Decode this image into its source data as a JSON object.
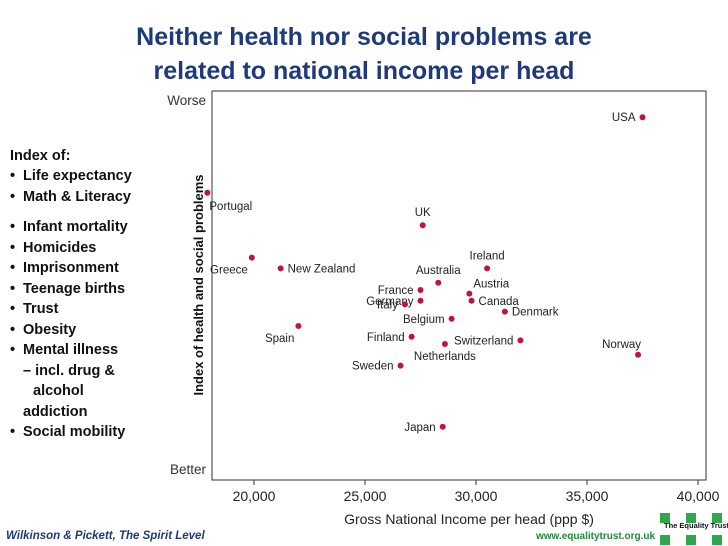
{
  "title": {
    "line1": "Neither health nor social problems are",
    "line2": "related to national income per head"
  },
  "index_block": {
    "heading": "Index of:",
    "items": [
      "Life expectancy",
      "Math & Literacy",
      "Infant mortality",
      "Homicides",
      "Imprisonment",
      "Teenage births",
      "Trust",
      "Obesity",
      "Mental illness",
      "Social mobility"
    ],
    "mental_illness_extra": [
      "– incl. drug &",
      "alcohol",
      "addiction"
    ]
  },
  "footer": {
    "source": "Wilkinson & Pickett, The Spirit Level",
    "url": "www.equalitytrust.org.uk",
    "logo_text": "The Equality Trust"
  },
  "colors": {
    "title": "#1f3a78",
    "point": "#c0143c",
    "url": "#1f8a3a",
    "logo": "#2ea84a"
  },
  "chart_data": {
    "type": "scatter",
    "xlabel": "Gross National Income per head (ppp $)",
    "ylabel": "Index of health and social problems",
    "xlim": [
      17500,
      40000
    ],
    "ylim": [
      0,
      100
    ],
    "x_ticks": [
      20000,
      25000,
      30000,
      35000,
      40000
    ],
    "x_tick_labels": [
      "20,000",
      "25,000",
      "30,000",
      "35,000",
      "40,000"
    ],
    "y_axis_top_label": "Worse",
    "y_axis_bottom_label": "Better",
    "grid": false,
    "points": [
      {
        "label": "USA",
        "x": 37500,
        "y": 98,
        "label_side": "left"
      },
      {
        "label": "Portugal",
        "x": 17900,
        "y": 77,
        "label_side": "below-right"
      },
      {
        "label": "UK",
        "x": 27600,
        "y": 68,
        "label_side": "above"
      },
      {
        "label": "Greece",
        "x": 19900,
        "y": 59,
        "label_side": "below-left"
      },
      {
        "label": "New Zealand",
        "x": 21200,
        "y": 56,
        "label_side": "right"
      },
      {
        "label": "Ireland",
        "x": 30500,
        "y": 56,
        "label_side": "above"
      },
      {
        "label": "Australia",
        "x": 28300,
        "y": 52,
        "label_side": "above"
      },
      {
        "label": "France",
        "x": 27500,
        "y": 50,
        "label_side": "left"
      },
      {
        "label": "Austria",
        "x": 29700,
        "y": 49,
        "label_side": "above-right"
      },
      {
        "label": "Germany",
        "x": 27500,
        "y": 47,
        "label_side": "left"
      },
      {
        "label": "Canada",
        "x": 29800,
        "y": 47,
        "label_side": "right"
      },
      {
        "label": "Italy",
        "x": 26800,
        "y": 46,
        "label_side": "left"
      },
      {
        "label": "Denmark",
        "x": 31300,
        "y": 44,
        "label_side": "right"
      },
      {
        "label": "Belgium",
        "x": 28900,
        "y": 42,
        "label_side": "left"
      },
      {
        "label": "Spain",
        "x": 22000,
        "y": 40,
        "label_side": "below-left"
      },
      {
        "label": "Finland",
        "x": 27100,
        "y": 37,
        "label_side": "left"
      },
      {
        "label": "Switzerland",
        "x": 32000,
        "y": 36,
        "label_side": "left"
      },
      {
        "label": "Netherlands",
        "x": 28600,
        "y": 35,
        "label_side": "below"
      },
      {
        "label": "Norway",
        "x": 37300,
        "y": 32,
        "label_side": "above-left"
      },
      {
        "label": "Sweden",
        "x": 26600,
        "y": 29,
        "label_side": "left"
      },
      {
        "label": "Japan",
        "x": 28500,
        "y": 12,
        "label_side": "left"
      }
    ]
  }
}
